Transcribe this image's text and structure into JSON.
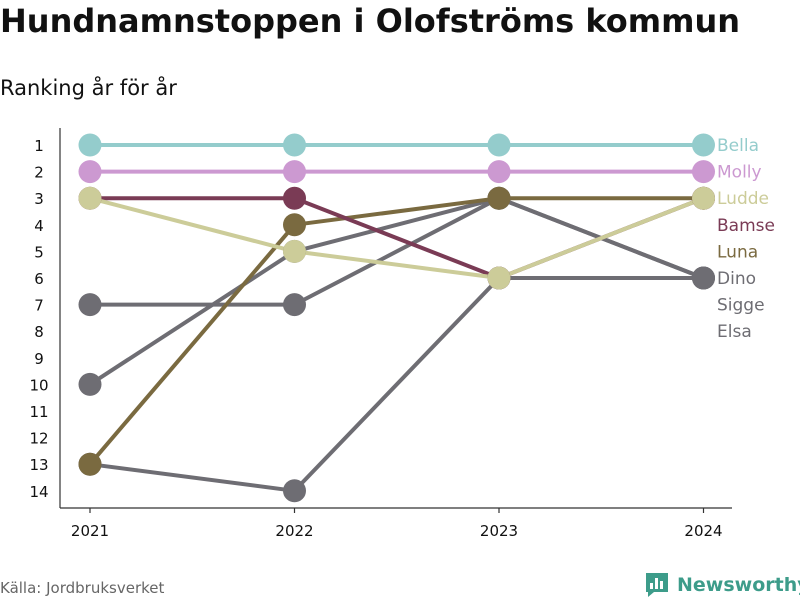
{
  "colors": {
    "Bella": "#94cccc",
    "Molly": "#cc99d1",
    "Ludde": "#cccc99",
    "Bamse": "#7a3b55",
    "Luna": "#7a6a40",
    "Dino": "#6e6d73",
    "Sigge": "#6e6d73",
    "Elsa": "#6e6d73",
    "brand": "#3d9c8a",
    "axis": "#333333"
  },
  "footer": {
    "source": "Källa: Jordbruksverket",
    "brand": "Newsworthy",
    "brand_icon": "bar-chart-logo-icon"
  },
  "chart_data": {
    "type": "line",
    "title": "Hundnamnstoppen i Olofströms kommun",
    "subtitle": "Ranking år för år",
    "x": [
      "2021",
      "2022",
      "2023",
      "2024"
    ],
    "y_ticks": [
      1,
      2,
      3,
      4,
      5,
      6,
      7,
      8,
      9,
      10,
      11,
      12,
      13,
      14
    ],
    "ylim": [
      14,
      1
    ],
    "y_inverted": true,
    "grid": false,
    "legend": "right-end-labels",
    "series": [
      {
        "name": "Elsa",
        "values": [
          13,
          14,
          6,
          6
        ]
      },
      {
        "name": "Sigge",
        "values": [
          10,
          5,
          3,
          6
        ]
      },
      {
        "name": "Dino",
        "values": [
          7,
          7,
          3,
          6
        ]
      },
      {
        "name": "Luna",
        "values": [
          13,
          4,
          3,
          3
        ]
      },
      {
        "name": "Bamse",
        "values": [
          3,
          3,
          6,
          3
        ]
      },
      {
        "name": "Ludde",
        "values": [
          3,
          5,
          6,
          3
        ]
      },
      {
        "name": "Molly",
        "values": [
          2,
          2,
          2,
          2
        ]
      },
      {
        "name": "Bella",
        "values": [
          1,
          1,
          1,
          1
        ]
      }
    ],
    "labels": [
      "Bella",
      "Molly",
      "Ludde",
      "Bamse",
      "Luna",
      "Dino",
      "Sigge",
      "Elsa"
    ]
  }
}
